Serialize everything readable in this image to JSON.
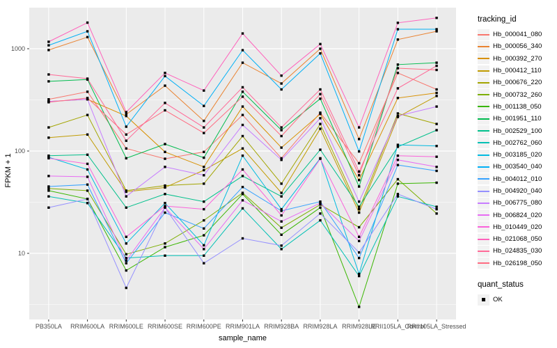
{
  "figure": {
    "y_tick_labels": [
      "1000",
      "100",
      "10"
    ],
    "x_axis_title": "sample_name",
    "y_axis_title": "FPKM + 1"
  },
  "legend": {
    "tracking_title": "tracking_id",
    "quant_title": "quant_status",
    "quant_items": [
      "OK"
    ]
  },
  "chart_data": {
    "type": "line",
    "title": "",
    "xlabel": "sample_name",
    "ylabel": "FPKM + 1",
    "yscale": "log10",
    "ylim": [
      2.5,
      2500
    ],
    "y_ticks": [
      10,
      100,
      1000
    ],
    "y_minor_ticks": [
      3.162,
      31.62,
      316.2
    ],
    "grid": true,
    "panel_bg": "#EBEBEB",
    "grid_color": "#FFFFFF",
    "tick_text_color": "#4D4D4D",
    "point_shape": "black-square",
    "legend_title": "tracking_id",
    "point_legend": {
      "title": "quant_status",
      "items": [
        "OK"
      ]
    },
    "categories": [
      "PB350LA",
      "RRIM600LA",
      "RRIM600LE",
      "RRIM600SE",
      "RRIM600PE",
      "RRIM901LA",
      "RRIM928BA",
      "RRIM928LA",
      "RRIM928LE",
      "RRII105LA_Control",
      "RRII105LA_Stressed"
    ],
    "series": [
      {
        "name": "Hb_000041_080",
        "color": "#F8766D",
        "values": [
          320,
          380,
          106,
          84,
          98,
          225,
          85,
          237,
          76,
          580,
          400
        ]
      },
      {
        "name": "Hb_000056_340",
        "color": "#EA8331",
        "values": [
          970,
          1300,
          228,
          435,
          197,
          730,
          457,
          1000,
          131,
          1230,
          1480
        ]
      },
      {
        "name": "Hb_000392_270",
        "color": "#D89000",
        "values": [
          305,
          320,
          220,
          98,
          70,
          272,
          108,
          230,
          52,
          330,
          370
        ]
      },
      {
        "name": "Hb_000412_110",
        "color": "#C09B00",
        "values": [
          135,
          145,
          40,
          44,
          65,
          106,
          39,
          165,
          25,
          215,
          345
        ]
      },
      {
        "name": "Hb_000676_220",
        "color": "#A3A500",
        "values": [
          170,
          225,
          41,
          46,
          48,
          140,
          48,
          184,
          27,
          233,
          184
        ]
      },
      {
        "name": "Hb_000732_260",
        "color": "#7CAE00",
        "values": [
          43,
          41,
          9.8,
          12.5,
          21,
          39,
          17.8,
          30,
          18,
          53,
          24.5
        ]
      },
      {
        "name": "Hb_001138_050",
        "color": "#39B600",
        "values": [
          41,
          34,
          6.8,
          11.5,
          15,
          38,
          15.2,
          28,
          3,
          48,
          49
        ]
      },
      {
        "name": "Hb_001951_110",
        "color": "#00BB4E",
        "values": [
          480,
          500,
          85,
          117,
          86,
          380,
          160,
          325,
          45,
          700,
          730
        ]
      },
      {
        "name": "Hb_002529_100",
        "color": "#00C08B",
        "values": [
          90,
          92,
          28,
          38,
          32,
          57,
          36,
          103,
          28.5,
          110,
          160
        ]
      },
      {
        "name": "Hb_002762_060",
        "color": "#00C0B4",
        "values": [
          36,
          31,
          9,
          9.5,
          9.5,
          27.5,
          11,
          21,
          6,
          36,
          28.5
        ]
      },
      {
        "name": "Hb_003185_020",
        "color": "#00BAE0",
        "values": [
          87,
          66,
          12.5,
          31,
          12,
          90,
          27,
          85,
          6.3,
          115,
          112
        ]
      },
      {
        "name": "Hb_003540_040",
        "color": "#00B0F6",
        "values": [
          1080,
          1480,
          173,
          540,
          276,
          968,
          400,
          900,
          99,
          1550,
          1550
        ]
      },
      {
        "name": "Hb_004012_010",
        "color": "#35A2FF",
        "values": [
          45,
          47,
          8,
          25,
          17.5,
          44.5,
          26,
          32,
          9,
          73,
          64
        ]
      },
      {
        "name": "Hb_004920_040",
        "color": "#9590FF",
        "values": [
          28,
          34,
          4.6,
          28,
          8,
          14,
          11.9,
          24.5,
          10.2,
          38,
          27
        ]
      },
      {
        "name": "Hb_006775_080",
        "color": "#C77CFF",
        "values": [
          305,
          320,
          36,
          70,
          58,
          180,
          82,
          209,
          32,
          220,
          272
        ]
      },
      {
        "name": "Hb_006824_020",
        "color": "#E76BF3",
        "values": [
          57,
          56,
          8.5,
          28,
          11,
          33,
          20.5,
          31,
          13.2,
          82,
          70
        ]
      },
      {
        "name": "Hb_010449_020",
        "color": "#FA62DB",
        "values": [
          85,
          75,
          14.5,
          29,
          27,
          66,
          23.5,
          84,
          14.5,
          90,
          88
        ]
      },
      {
        "name": "Hb_021068_050",
        "color": "#FF62BC",
        "values": [
          1170,
          1800,
          240,
          580,
          390,
          1410,
          545,
          1110,
          170,
          1790,
          2000
        ]
      },
      {
        "name": "Hb_024835_030",
        "color": "#FF6A98",
        "values": [
          560,
          510,
          126,
          295,
          170,
          420,
          170,
          400,
          63,
          410,
          680
        ]
      },
      {
        "name": "Hb_026198_050",
        "color": "#FF6B81",
        "values": [
          300,
          330,
          145,
          250,
          150,
          340,
          140,
          360,
          58,
          645,
          620
        ]
      }
    ]
  }
}
